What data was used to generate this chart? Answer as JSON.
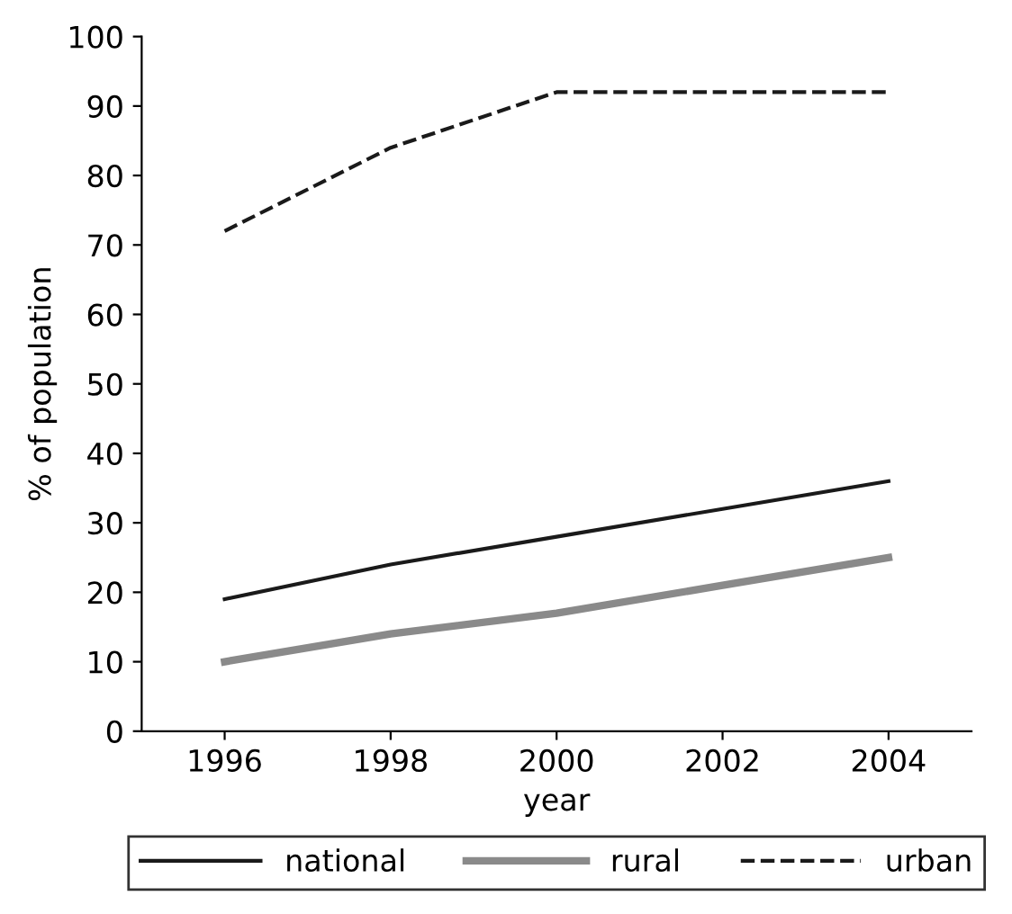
{
  "chart_data": {
    "type": "line",
    "xlabel": "year",
    "ylabel": "% of population",
    "x": [
      1996,
      1998,
      2000,
      2002,
      2004
    ],
    "series": [
      {
        "name": "national",
        "color": "#1a1a1a",
        "line_style": "solid",
        "values": [
          19,
          24,
          28,
          32,
          36
        ]
      },
      {
        "name": "rural",
        "color": "#8a8a8a",
        "line_style": "solid",
        "values": [
          10,
          14,
          17,
          21,
          25
        ]
      },
      {
        "name": "urban",
        "color": "#1a1a1a",
        "line_style": "dashed",
        "values": [
          72,
          84,
          92,
          92,
          92
        ]
      }
    ],
    "xlim": [
      1995,
      2005
    ],
    "xticks": [
      1996,
      1998,
      2000,
      2002,
      2004
    ],
    "ylim": [
      0,
      100
    ],
    "yticks": [
      0,
      10,
      20,
      30,
      40,
      50,
      60,
      70,
      80,
      90,
      100
    ],
    "grid": false,
    "legend": "bottom",
    "marker": "none"
  }
}
